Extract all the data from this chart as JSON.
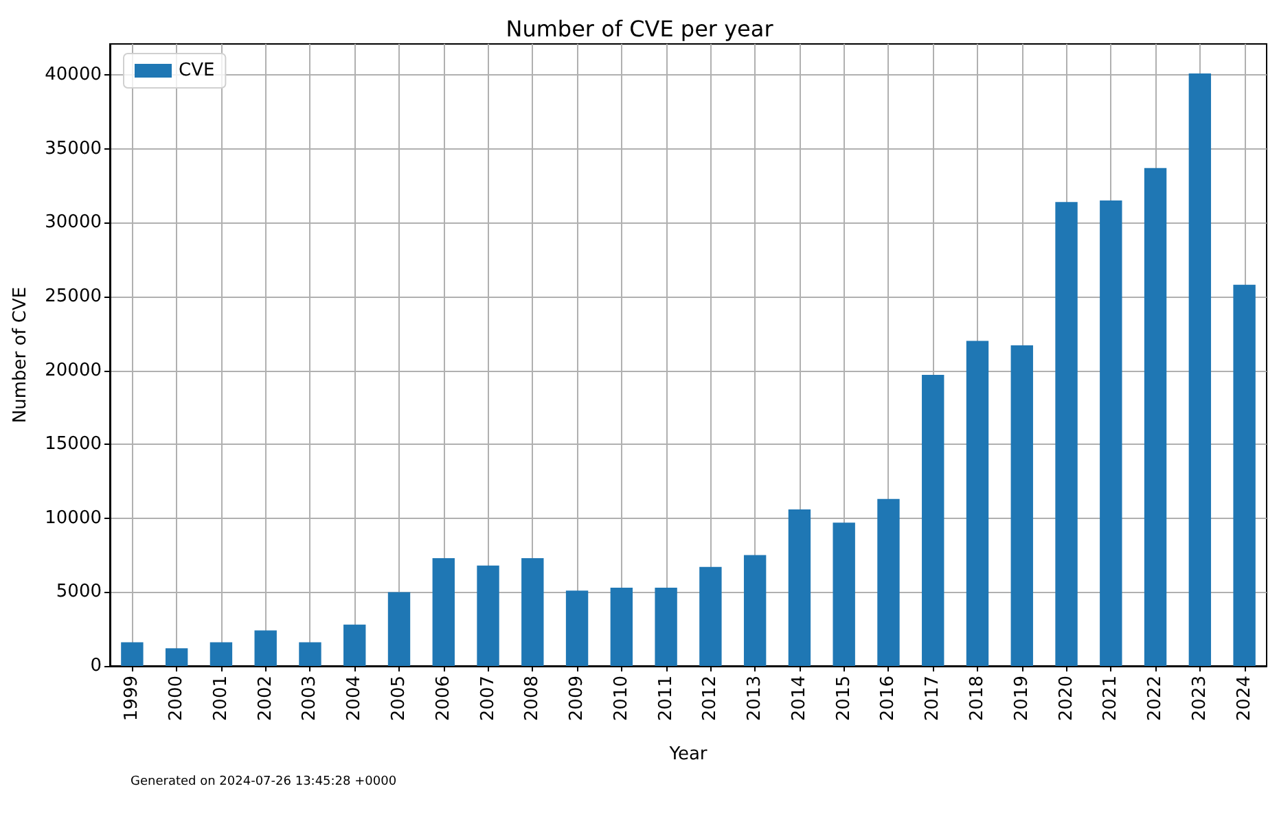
{
  "chart_data": {
    "type": "bar",
    "title": "Number of CVE per year",
    "xlabel": "Year",
    "ylabel": "Number of CVE",
    "categories": [
      "1999",
      "2000",
      "2001",
      "2002",
      "2003",
      "2004",
      "2005",
      "2006",
      "2007",
      "2008",
      "2009",
      "2010",
      "2011",
      "2012",
      "2013",
      "2014",
      "2015",
      "2016",
      "2017",
      "2018",
      "2019",
      "2020",
      "2021",
      "2022",
      "2023",
      "2024"
    ],
    "series": [
      {
        "name": "CVE",
        "color": "#1f77b4",
        "values": [
          1600,
          1200,
          1600,
          2400,
          1600,
          2800,
          5000,
          7300,
          6800,
          7300,
          5100,
          5300,
          5300,
          6700,
          7500,
          10600,
          9700,
          11300,
          19700,
          22000,
          21700,
          31400,
          31500,
          33700,
          40100,
          25800
        ]
      }
    ],
    "ylim": [
      0,
      42100
    ],
    "yticks": [
      0,
      5000,
      10000,
      15000,
      20000,
      25000,
      30000,
      35000,
      40000
    ],
    "grid": true,
    "legend": "top left",
    "annotations": [
      "Generated on 2024-07-26 13:45:28 +0000"
    ]
  }
}
